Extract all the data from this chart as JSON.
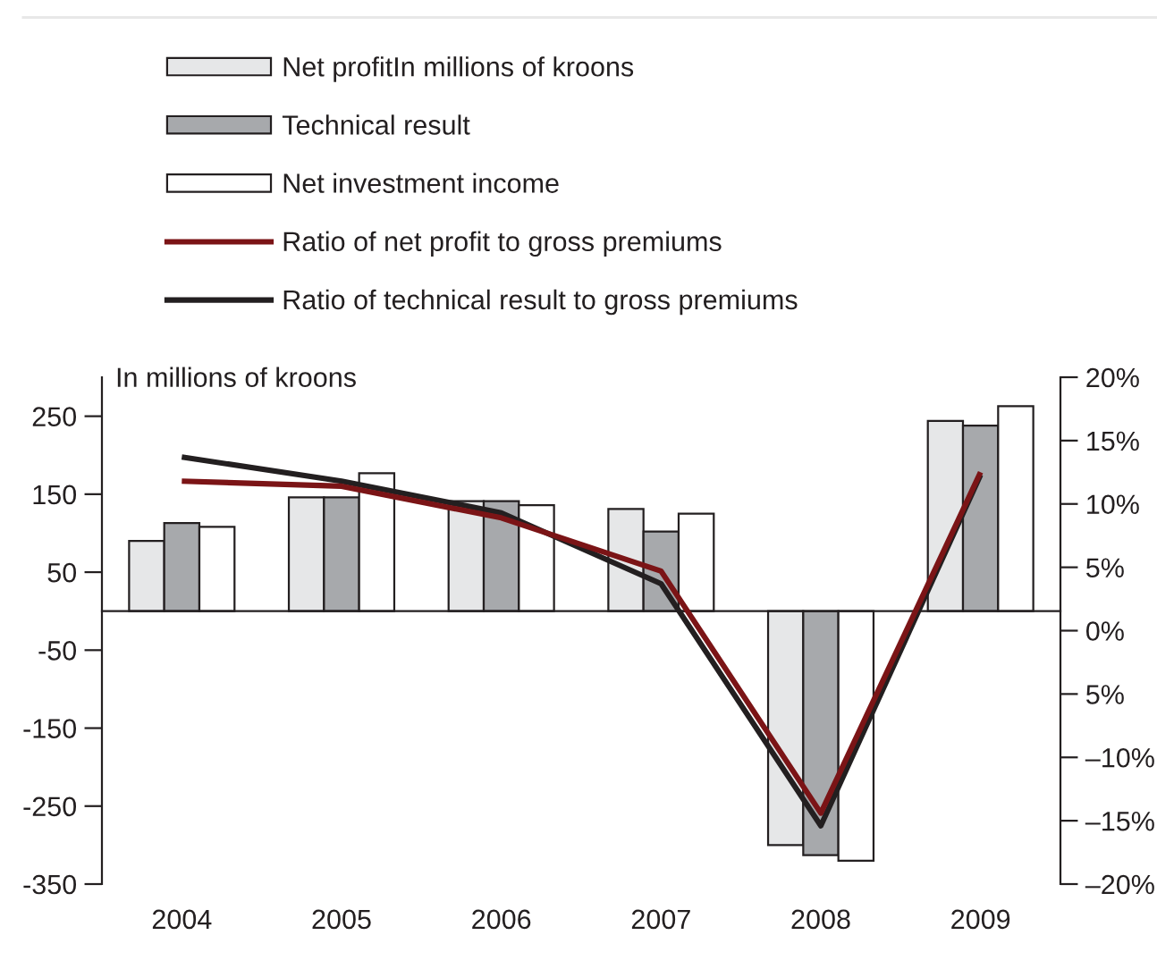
{
  "chart_data": {
    "type": "bar",
    "categories": [
      "2004",
      "2005",
      "2006",
      "2007",
      "2008",
      "2009"
    ],
    "series": [
      {
        "name": "Net profitIn millions of kroons",
        "color": "#e6e7e8",
        "values": [
          90,
          146,
          141,
          131,
          -300,
          244
        ]
      },
      {
        "name": "Technical result",
        "color": "#a7a9ac",
        "values": [
          113,
          146,
          141,
          102,
          -313,
          238
        ]
      },
      {
        "name": "Net investment income",
        "color": "#ffffff",
        "values": [
          108,
          177,
          136,
          125,
          -320,
          263
        ]
      },
      {
        "name": "Ratio of net profit to gross premiums",
        "type": "line",
        "axis": "y2",
        "color": "#7b1416",
        "values": [
          11.8,
          11.4,
          8.9,
          4.7,
          -14.4,
          12.5
        ]
      },
      {
        "name": "Ratio of technical result to gross premiums",
        "type": "line",
        "axis": "y2",
        "color": "#231f20",
        "values": [
          13.7,
          11.8,
          9.3,
          3.7,
          -15.4,
          12.3
        ]
      }
    ],
    "ylabel": "In millions of kroons",
    "ylim": [
      -350,
      300
    ],
    "yticks": [
      -350,
      -250,
      -150,
      -50,
      50,
      150,
      250
    ],
    "y2lim": [
      -20,
      20
    ],
    "y2ticks": [
      {
        "value": -20,
        "label": "–20%"
      },
      {
        "value": -15,
        "label": "–15%"
      },
      {
        "value": -10,
        "label": "–10%"
      },
      {
        "value": -5,
        "label": "5%"
      },
      {
        "value": 0,
        "label": "0%"
      },
      {
        "value": 5,
        "label": "5%"
      },
      {
        "value": 10,
        "label": "10%"
      },
      {
        "value": 15,
        "label": "15%"
      },
      {
        "value": 20,
        "label": "20%"
      }
    ],
    "legend": "top"
  }
}
